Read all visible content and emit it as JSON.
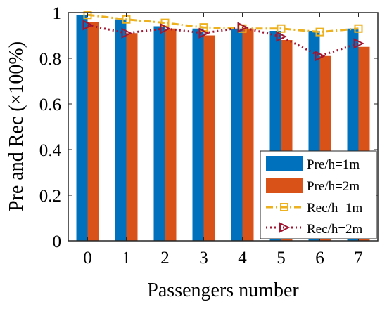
{
  "chart_data": {
    "type": "bar",
    "x": [
      0,
      1,
      2,
      3,
      4,
      5,
      6,
      7
    ],
    "xtick_labels": [
      "0",
      "1",
      "2",
      "3",
      "4",
      "5",
      "6",
      "7"
    ],
    "ytick_labels": [
      "0",
      "0.2",
      "0.4",
      "0.6",
      "0.8",
      "1"
    ],
    "yticks": [
      0,
      0.2,
      0.4,
      0.6,
      0.8,
      1
    ],
    "xlabel": "Passengers number",
    "ylabel": "Pre and Rec (×100%)",
    "ylim": [
      0,
      1
    ],
    "grid": false,
    "legend_position": "bottom-right",
    "series": [
      {
        "name": "Pre/h=1m",
        "kind": "bar",
        "color": "#0072BD",
        "values": [
          0.99,
          0.97,
          0.94,
          0.93,
          0.93,
          0.92,
          0.92,
          0.93
        ]
      },
      {
        "name": "Pre/h=2m",
        "kind": "bar",
        "color": "#D95319",
        "values": [
          0.96,
          0.91,
          0.93,
          0.9,
          0.93,
          0.88,
          0.81,
          0.85
        ]
      },
      {
        "name": "Rec/h=1m",
        "kind": "line",
        "color": "#EDB120",
        "line_style": "dash-dot",
        "marker": "square",
        "values": [
          0.99,
          0.97,
          0.955,
          0.935,
          0.93,
          0.93,
          0.915,
          0.93
        ]
      },
      {
        "name": "Rec/h=2m",
        "kind": "line",
        "color": "#A2142F",
        "line_style": "dotted",
        "marker": "triangle-right",
        "values": [
          0.945,
          0.91,
          0.93,
          0.91,
          0.935,
          0.895,
          0.81,
          0.865
        ]
      }
    ]
  }
}
